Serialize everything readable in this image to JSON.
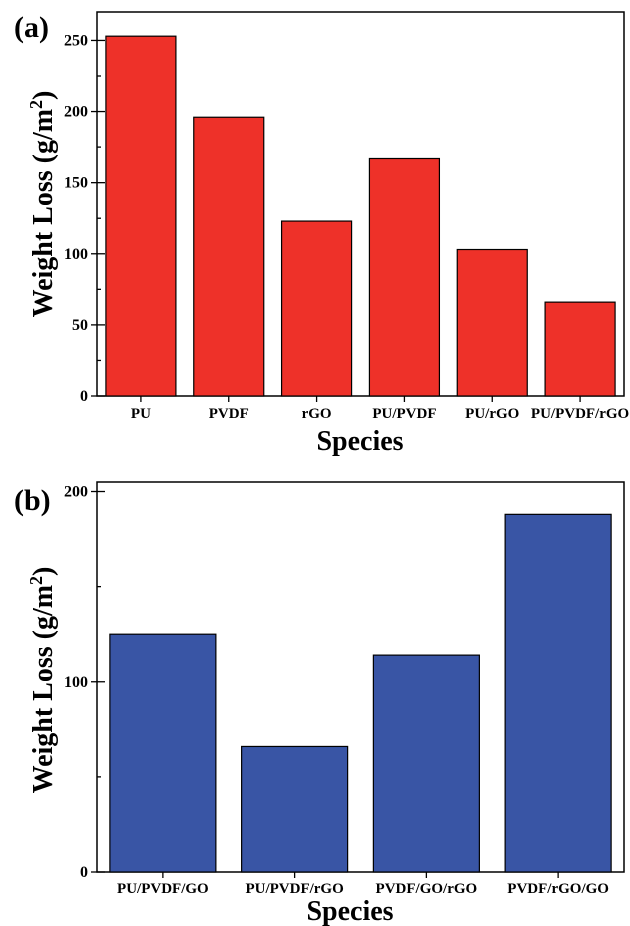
{
  "chart_data": [
    {
      "type": "bar",
      "panel_label": "(a)",
      "categories": [
        "PU",
        "PVDF",
        "rGO",
        "PU/PVDF",
        "PU/rGO",
        "PU/PVDF/rGO"
      ],
      "values": [
        253,
        196,
        123,
        167,
        103,
        66
      ],
      "xlabel": "Species",
      "ylabel_main": "Weight Loss (g/m",
      "ylabel_sup": "2",
      "ylabel_end": ")",
      "ylim": [
        0,
        270
      ],
      "yticks": [
        0,
        50,
        100,
        150,
        200,
        250
      ],
      "yticks_minor_step": 25,
      "bar_color": "#ee3129",
      "grid": false
    },
    {
      "type": "bar",
      "panel_label": "(b)",
      "categories": [
        "PU/PVDF/GO",
        "PU/PVDF/rGO",
        "PVDF/GO/rGO",
        "PVDF/rGO/GO"
      ],
      "values": [
        125,
        66,
        114,
        188
      ],
      "xlabel": "Species",
      "ylabel_main": "Weight Loss (g/m",
      "ylabel_sup": "2",
      "ylabel_end": ")",
      "ylim": [
        0,
        205
      ],
      "yticks": [
        0,
        100,
        200
      ],
      "yticks_minor_step": 50,
      "bar_color": "#3955a5",
      "grid": false
    }
  ]
}
